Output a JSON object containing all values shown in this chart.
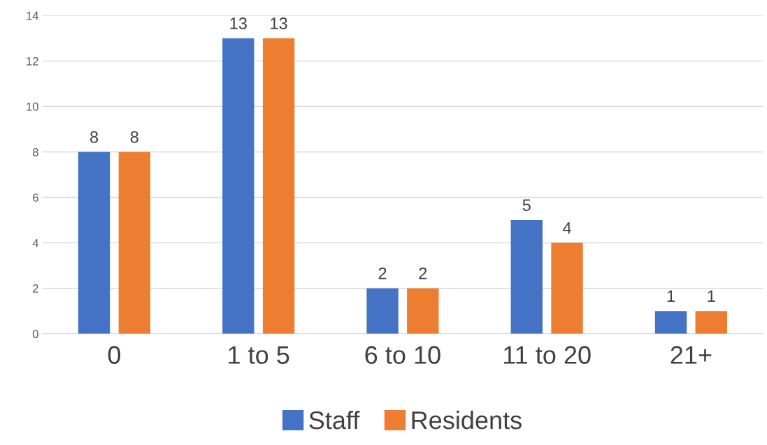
{
  "chart_data": {
    "type": "bar",
    "categories": [
      "0",
      "1 to 5",
      "6 to 10",
      "11 to 20",
      "21+"
    ],
    "series": [
      {
        "name": "Staff",
        "color": "#4472c4",
        "values": [
          8,
          13,
          2,
          5,
          1
        ]
      },
      {
        "name": "Residents",
        "color": "#ed7d31",
        "values": [
          8,
          13,
          2,
          4,
          1
        ]
      }
    ],
    "ylim": [
      0,
      14
    ],
    "yticks": [
      0,
      2,
      4,
      6,
      8,
      10,
      12,
      14
    ],
    "grid": "y",
    "legend": "bottom",
    "data_labels": true
  }
}
